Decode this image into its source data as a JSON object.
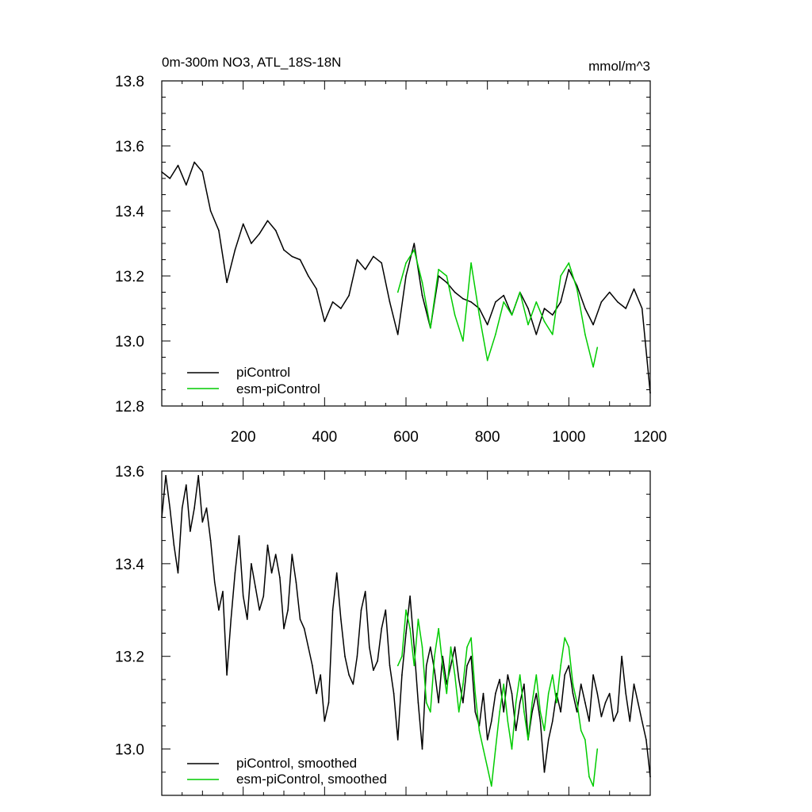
{
  "chart_data": [
    {
      "type": "line",
      "title": "0m-300m NO3, ATL_18S-18N",
      "units": "mmol/m^3",
      "xlim": [
        0,
        1200
      ],
      "ylim": [
        12.8,
        13.8
      ],
      "x_ticks": [
        200,
        400,
        600,
        800,
        1000,
        1200
      ],
      "x_tick_labels": [
        "200",
        "400",
        "600",
        "800",
        "1000",
        "1200"
      ],
      "y_ticks": [
        12.8,
        13.0,
        13.2,
        13.4,
        13.6,
        13.8
      ],
      "y_tick_labels": [
        "12.8",
        "13.0",
        "13.2",
        "13.4",
        "13.6",
        "13.8"
      ],
      "legend_position": "bottom-left",
      "grid": false,
      "series": [
        {
          "name": "piControl",
          "color": "#000000",
          "x": [
            0,
            20,
            40,
            60,
            80,
            100,
            120,
            140,
            160,
            180,
            200,
            220,
            240,
            260,
            280,
            300,
            320,
            340,
            360,
            380,
            400,
            420,
            440,
            460,
            480,
            500,
            520,
            540,
            560,
            580,
            600,
            620,
            640,
            660,
            680,
            700,
            720,
            740,
            760,
            780,
            800,
            820,
            840,
            860,
            880,
            900,
            920,
            940,
            960,
            980,
            1000,
            1020,
            1040,
            1060,
            1080,
            1100,
            1120,
            1140,
            1160,
            1180,
            1200
          ],
          "values": [
            13.52,
            13.5,
            13.54,
            13.48,
            13.55,
            13.52,
            13.4,
            13.34,
            13.18,
            13.28,
            13.36,
            13.3,
            13.33,
            13.37,
            13.34,
            13.28,
            13.26,
            13.25,
            13.2,
            13.16,
            13.06,
            13.12,
            13.1,
            13.14,
            13.25,
            13.22,
            13.26,
            13.24,
            13.12,
            13.02,
            13.2,
            13.3,
            13.14,
            13.04,
            13.2,
            13.18,
            13.15,
            13.13,
            13.12,
            13.1,
            13.05,
            13.12,
            13.14,
            13.08,
            13.15,
            13.1,
            13.02,
            13.1,
            13.08,
            13.12,
            13.22,
            13.17,
            13.1,
            13.05,
            13.12,
            13.15,
            13.12,
            13.1,
            13.16,
            13.1,
            12.84
          ]
        },
        {
          "name": "esm-piControl",
          "color": "#00cc00",
          "x": [
            580,
            600,
            620,
            640,
            660,
            680,
            700,
            720,
            740,
            760,
            780,
            800,
            820,
            840,
            860,
            880,
            900,
            920,
            940,
            960,
            980,
            1000,
            1020,
            1040,
            1060,
            1070
          ],
          "values": [
            13.15,
            13.24,
            13.28,
            13.18,
            13.04,
            13.22,
            13.2,
            13.08,
            13.0,
            13.24,
            13.08,
            12.94,
            13.02,
            13.12,
            13.08,
            13.15,
            13.05,
            13.12,
            13.06,
            13.02,
            13.2,
            13.24,
            13.16,
            13.02,
            12.92,
            12.98
          ]
        }
      ],
      "legend": [
        "piControl",
        "esm-piControl"
      ]
    },
    {
      "type": "line",
      "title": "",
      "xlim": [
        0,
        1200
      ],
      "ylim": [
        12.9,
        13.6
      ],
      "y_ticks": [
        13.0,
        13.2,
        13.4,
        13.6
      ],
      "y_tick_labels": [
        "13.0",
        "13.2",
        "13.4",
        "13.6"
      ],
      "legend_position": "bottom-left",
      "grid": false,
      "series": [
        {
          "name": "piControl, smoothed",
          "color": "#000000",
          "x": [
            0,
            10,
            20,
            30,
            40,
            50,
            60,
            70,
            80,
            90,
            100,
            110,
            120,
            130,
            140,
            150,
            160,
            170,
            180,
            190,
            200,
            210,
            220,
            230,
            240,
            250,
            260,
            270,
            280,
            290,
            300,
            310,
            320,
            330,
            340,
            350,
            360,
            370,
            380,
            390,
            400,
            410,
            420,
            430,
            440,
            450,
            460,
            470,
            480,
            490,
            500,
            510,
            520,
            530,
            540,
            550,
            560,
            570,
            580,
            590,
            600,
            610,
            620,
            630,
            640,
            650,
            660,
            670,
            680,
            690,
            700,
            710,
            720,
            730,
            740,
            750,
            760,
            770,
            780,
            790,
            800,
            810,
            820,
            830,
            840,
            850,
            860,
            870,
            880,
            890,
            900,
            910,
            920,
            930,
            940,
            950,
            960,
            970,
            980,
            990,
            1000,
            1010,
            1020,
            1030,
            1040,
            1050,
            1060,
            1070,
            1080,
            1090,
            1100,
            1110,
            1120,
            1130,
            1140,
            1150,
            1160,
            1170,
            1180,
            1190,
            1200
          ],
          "values": [
            13.5,
            13.59,
            13.52,
            13.44,
            13.38,
            13.52,
            13.57,
            13.47,
            13.52,
            13.59,
            13.49,
            13.52,
            13.45,
            13.36,
            13.3,
            13.34,
            13.16,
            13.28,
            13.38,
            13.46,
            13.33,
            13.28,
            13.4,
            13.35,
            13.3,
            13.33,
            13.44,
            13.38,
            13.42,
            13.37,
            13.26,
            13.3,
            13.42,
            13.36,
            13.28,
            13.26,
            13.22,
            13.18,
            13.12,
            13.16,
            13.06,
            13.1,
            13.3,
            13.38,
            13.28,
            13.2,
            13.16,
            13.14,
            13.2,
            13.3,
            13.34,
            13.22,
            13.17,
            13.19,
            13.26,
            13.3,
            13.18,
            13.12,
            13.02,
            13.16,
            13.25,
            13.33,
            13.22,
            13.1,
            13.0,
            13.18,
            13.22,
            13.17,
            13.1,
            13.2,
            13.14,
            13.18,
            13.22,
            13.15,
            13.1,
            13.18,
            13.2,
            13.08,
            13.05,
            13.12,
            13.02,
            13.06,
            13.12,
            13.15,
            13.08,
            13.16,
            13.12,
            13.04,
            13.1,
            13.14,
            13.02,
            13.08,
            13.12,
            13.06,
            12.95,
            13.02,
            13.06,
            13.12,
            13.08,
            13.16,
            13.18,
            13.12,
            13.08,
            13.14,
            13.1,
            13.06,
            13.16,
            13.12,
            13.07,
            13.1,
            13.12,
            13.06,
            13.08,
            13.2,
            13.12,
            13.06,
            13.14,
            13.1,
            13.06,
            13.02,
            12.94
          ]
        },
        {
          "name": "esm-piControl, smoothed",
          "color": "#00cc00",
          "x": [
            580,
            590,
            600,
            610,
            620,
            630,
            640,
            650,
            660,
            670,
            680,
            690,
            700,
            710,
            720,
            730,
            740,
            750,
            760,
            770,
            780,
            790,
            800,
            810,
            820,
            830,
            840,
            850,
            860,
            870,
            880,
            890,
            900,
            910,
            920,
            930,
            940,
            950,
            960,
            970,
            980,
            990,
            1000,
            1010,
            1020,
            1030,
            1040,
            1050,
            1060,
            1070
          ],
          "values": [
            13.18,
            13.2,
            13.3,
            13.26,
            13.18,
            13.28,
            13.22,
            13.1,
            13.08,
            13.2,
            13.26,
            13.18,
            13.12,
            13.22,
            13.16,
            13.08,
            13.14,
            13.22,
            13.24,
            13.12,
            13.04,
            13.0,
            12.96,
            12.92,
            13.0,
            13.08,
            13.14,
            13.06,
            13.0,
            13.1,
            13.16,
            13.08,
            13.02,
            13.1,
            13.16,
            13.08,
            13.04,
            13.12,
            13.16,
            13.1,
            13.18,
            13.24,
            13.22,
            13.14,
            13.1,
            13.04,
            13.02,
            12.94,
            12.92,
            13.0
          ]
        }
      ],
      "legend": [
        "piControl, smoothed",
        "esm-piControl, smoothed"
      ]
    }
  ]
}
